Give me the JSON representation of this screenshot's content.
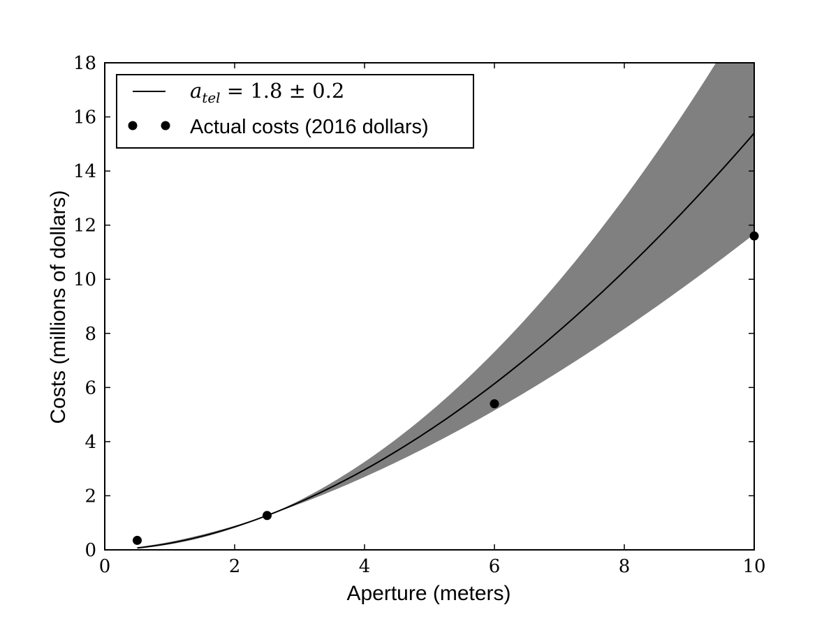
{
  "chart_data": {
    "type": "line",
    "xlabel": "Aperture (meters)",
    "ylabel": "Costs (millions of dollars)",
    "xlim": [
      0,
      10
    ],
    "ylim": [
      0,
      18
    ],
    "xticks": [
      0,
      2,
      4,
      6,
      8,
      10
    ],
    "yticks": [
      0,
      2,
      4,
      6,
      8,
      10,
      12,
      14,
      16,
      18
    ],
    "grid": false,
    "legend_position": "top-left",
    "fit": {
      "label_base": "a",
      "label_subscript": "tel",
      "label_rest": " = 1.8 ± 0.2",
      "exponent": 1.8,
      "exponent_low": 1.6,
      "exponent_high": 2.0,
      "anchor_x": 2.5,
      "anchor_y": 1.27,
      "band_color": "#808080",
      "line_color": "#000000"
    },
    "series": [
      {
        "name": "Actual costs (2016 dollars)",
        "marker": "circle",
        "color": "#000000",
        "x": [
          0.5,
          2.5,
          6.0,
          10.0
        ],
        "y": [
          0.35,
          1.27,
          5.4,
          11.6
        ]
      }
    ]
  }
}
